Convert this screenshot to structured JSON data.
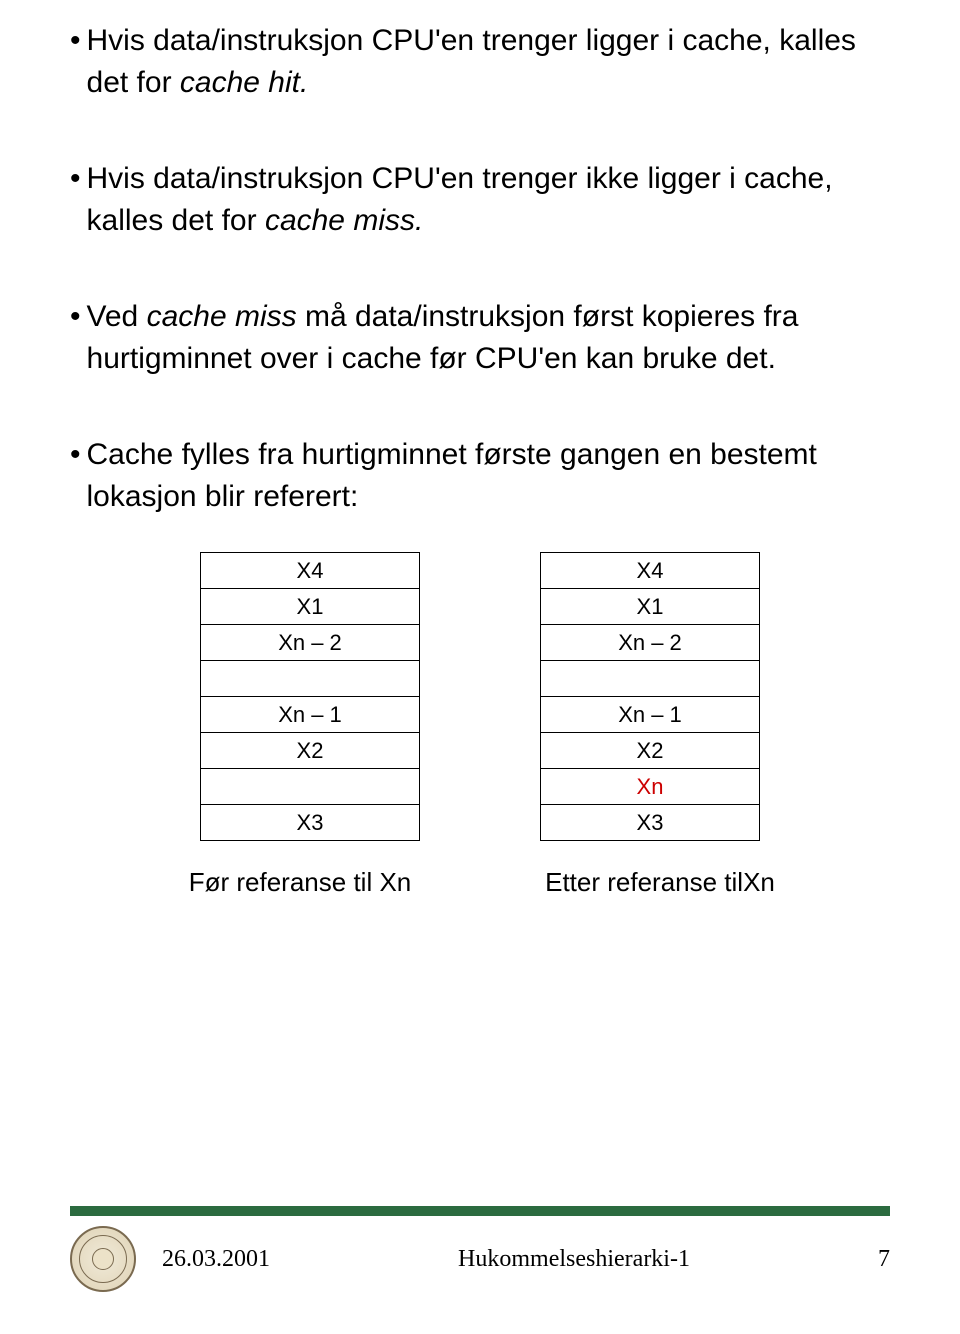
{
  "bullets": {
    "b1_pre": "Hvis data/instruksjon CPU'en trenger ligger i cache, kalles det for ",
    "b1_em": "cache hit.",
    "b2_pre": "Hvis data/instruksjon CPU'en trenger ikke ligger i cache, kalles det for ",
    "b2_em": "cache miss.",
    "b3_pre1": "Ved ",
    "b3_em": "cache miss",
    "b3_post": " må data/instruksjon først kopieres fra hurtigminnet over i cache før CPU'en kan bruke det.",
    "b4": "Cache fylles fra hurtigminnet første gangen en bestemt lokasjon blir referert:"
  },
  "tables": {
    "left": [
      "X4",
      "X1",
      "Xn – 2",
      "",
      "Xn – 1",
      "X2",
      "",
      "X3"
    ],
    "right": [
      "X4",
      "X1",
      "Xn – 2",
      "",
      "Xn – 1",
      "X2",
      "Xn",
      "X3"
    ],
    "highlight_color": "#cc0000"
  },
  "captions": {
    "left": "Før referanse til Xn",
    "right": "Etter referanse tilXn"
  },
  "footer": {
    "date": "26.03.2001",
    "title": "Hukommelseshierarki-1",
    "page": "7",
    "bar_color": "#2b6b3f"
  }
}
